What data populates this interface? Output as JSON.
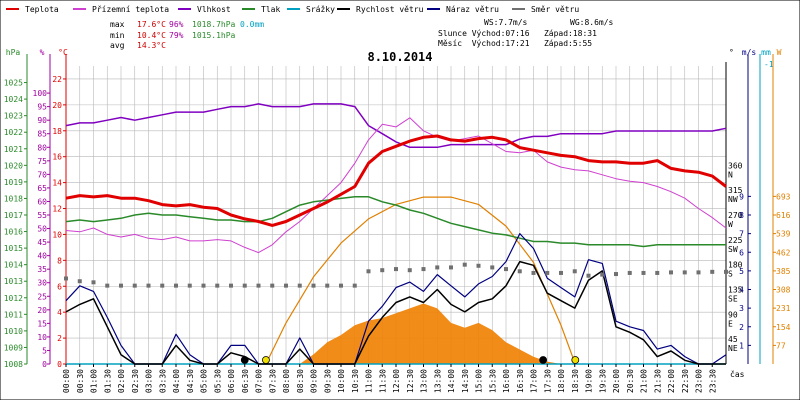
{
  "colors": {
    "teplota": "#e00000",
    "prizemni": "#d040d0",
    "vlhkost": "#8000c0",
    "tlak": "#2a8a2a",
    "srazky": "#00a0c0",
    "rychlost": "#000000",
    "naraz": "#000080",
    "smer": "#707070",
    "sun_curve": "#e08000",
    "solar_fill": "#f08000",
    "grid": "#b8b8b8",
    "axis_hpa": "#2a8a2a",
    "axis_pct": "#a000a0",
    "axis_c": "#e00000",
    "axis_ms": "#000080",
    "axis_mm": "#00a0c0",
    "axis_w": "#e08000",
    "moon_dot": "#000000",
    "sun_dot": "#f0e000"
  },
  "legend": [
    {
      "key": "teplota",
      "label": "Teplota"
    },
    {
      "key": "prizemni",
      "label": "Přízemní teplota"
    },
    {
      "key": "vlhkost",
      "label": "Vlhkost"
    },
    {
      "key": "tlak",
      "label": "Tlak"
    },
    {
      "key": "srazky",
      "label": "Srážky"
    },
    {
      "key": "rychlost",
      "label": "Rychlost větru"
    },
    {
      "key": "naraz",
      "label": "Náraz větru"
    },
    {
      "key": "smer",
      "label": "Směr větru"
    }
  ],
  "stats": {
    "max_label": "max",
    "max_temp": "17.6°C",
    "max_hum": "96%",
    "max_press": "1018.7hPa",
    "max_rain": "0.0mm",
    "min_label": "min",
    "min_temp": "10.4°C",
    "min_hum": "79%",
    "min_press": "1015.1hPa",
    "avg_label": "avg",
    "avg_temp": "14.3°C",
    "ws": "WS:7.7m/s",
    "wg": "WG:8.6m/s",
    "sun": "Slunce Východ:07:16   Západ:18:31",
    "moon": "Měsíc  Východ:17:21   Západ:5:55"
  },
  "chart_data": {
    "type": "line",
    "title": "8.10.2014",
    "xlabel": "čas",
    "x_ticks": [
      "00:00",
      "00:30",
      "01:00",
      "01:30",
      "02:00",
      "02:30",
      "03:00",
      "03:30",
      "04:00",
      "04:30",
      "05:00",
      "05:30",
      "06:00",
      "06:30",
      "07:00",
      "07:30",
      "08:00",
      "08:30",
      "09:00",
      "09:30",
      "10:00",
      "10:30",
      "11:00",
      "11:30",
      "12:00",
      "12:30",
      "13:00",
      "13:30",
      "14:00",
      "14:30",
      "15:00",
      "15:30",
      "16:00",
      "16:30",
      "17:00",
      "17:30",
      "18:00",
      "18:30",
      "19:00",
      "19:30",
      "20:00",
      "20:30",
      "21:00",
      "21:30",
      "22:00",
      "22:30",
      "23:00",
      "23:30"
    ],
    "axes": {
      "hpa": {
        "unit": "hPa",
        "range": [
          1008,
          1026
        ],
        "ticks": [
          1008,
          1009,
          1010,
          1011,
          1012,
          1013,
          1014,
          1015,
          1016,
          1017,
          1018,
          1019,
          1020,
          1021,
          1022,
          1023,
          1024,
          1025
        ]
      },
      "pct": {
        "unit": "%",
        "range": [
          0,
          110
        ],
        "ticks": [
          0,
          5,
          10,
          15,
          20,
          25,
          30,
          35,
          40,
          45,
          50,
          55,
          60,
          65,
          70,
          75,
          80,
          85,
          90,
          95,
          100
        ]
      },
      "degc": {
        "unit": "°C",
        "range": [
          0,
          23
        ],
        "ticks": [
          0,
          2,
          4,
          6,
          8,
          10,
          12,
          14,
          16,
          18,
          20,
          22
        ]
      },
      "dir": {
        "unit": "°",
        "ticks": [
          {
            "v": 45,
            "l": "NE"
          },
          {
            "v": 90,
            "l": "E"
          },
          {
            "v": 135,
            "l": "SE"
          },
          {
            "v": 180,
            "l": "S"
          },
          {
            "v": 225,
            "l": "SW"
          },
          {
            "v": 270,
            "l": "W"
          },
          {
            "v": 315,
            "l": "NW"
          },
          {
            "v": 360,
            "l": "N"
          }
        ]
      },
      "ms": {
        "unit": "m/s",
        "ticks": [
          1,
          2,
          3,
          4,
          5,
          6,
          7,
          8,
          9
        ]
      },
      "mm": {
        "unit": "mm",
        "ticks": [
          -1
        ]
      },
      "w": {
        "unit": "W",
        "ticks": [
          77,
          154,
          231,
          308,
          385,
          462,
          539,
          616,
          693
        ]
      }
    },
    "series": [
      {
        "name": "Teplota",
        "axis": "degc",
        "x": [
          0,
          0.5,
          1,
          1.5,
          2,
          2.5,
          3,
          3.5,
          4,
          4.5,
          5,
          5.5,
          6,
          6.5,
          7,
          7.5,
          8,
          8.5,
          9,
          9.5,
          10,
          10.5,
          11,
          11.5,
          12,
          12.5,
          13,
          13.5,
          14,
          14.5,
          15,
          15.5,
          16,
          16.5,
          17,
          17.5,
          18,
          18.5,
          19,
          19.5,
          20,
          20.5,
          21,
          21.5,
          22,
          22.5,
          23,
          23.5,
          24
        ],
        "y": [
          12.8,
          13,
          12.9,
          13,
          12.8,
          12.8,
          12.6,
          12.3,
          12.2,
          12.3,
          12.1,
          12,
          11.5,
          11.2,
          11,
          10.7,
          11,
          11.5,
          12,
          12.5,
          13.1,
          13.7,
          15.5,
          16.4,
          16.8,
          17.2,
          17.5,
          17.6,
          17.3,
          17.2,
          17.4,
          17.5,
          17.3,
          16.7,
          16.5,
          16.3,
          16.1,
          16,
          15.7,
          15.6,
          15.6,
          15.5,
          15.5,
          15.7,
          15.1,
          14.9,
          14.8,
          14.5,
          13.7
        ]
      },
      {
        "name": "Přízemní teplota",
        "axis": "degc",
        "x": [
          0,
          0.5,
          1,
          1.5,
          2,
          2.5,
          3,
          3.5,
          4,
          4.5,
          5,
          5.5,
          6,
          6.5,
          7,
          7.5,
          8,
          8.5,
          9,
          9.5,
          10,
          10.5,
          11,
          11.5,
          12,
          12.5,
          13,
          13.5,
          14,
          14.5,
          15,
          15.5,
          16,
          16.5,
          17,
          17.5,
          18,
          18.5,
          19,
          19.5,
          20,
          20.5,
          21,
          21.5,
          22,
          22.5,
          23,
          23.5,
          24
        ],
        "y": [
          10.3,
          10.2,
          10.5,
          10,
          9.8,
          10,
          9.7,
          9.6,
          9.8,
          9.5,
          9.5,
          9.6,
          9.5,
          9,
          8.6,
          9.2,
          10.2,
          11,
          12,
          13,
          14,
          15.5,
          17.3,
          18.5,
          18.3,
          19,
          18,
          17.5,
          17.2,
          17.4,
          17.6,
          17,
          16.4,
          16.3,
          16.5,
          15.6,
          15.2,
          15,
          14.9,
          14.6,
          14.3,
          14.1,
          14,
          13.7,
          13.3,
          12.8,
          12,
          11.3,
          10.5
        ]
      },
      {
        "name": "Vlhkost",
        "axis": "pct",
        "x": [
          0,
          0.5,
          1,
          1.5,
          2,
          2.5,
          3,
          3.5,
          4,
          4.5,
          5,
          5.5,
          6,
          6.5,
          7,
          7.5,
          8,
          8.5,
          9,
          9.5,
          10,
          10.5,
          11,
          11.5,
          12,
          12.5,
          13,
          13.5,
          14,
          14.5,
          15,
          15.5,
          16,
          16.5,
          17,
          17.5,
          18,
          18.5,
          19,
          19.5,
          20,
          20.5,
          21,
          21.5,
          22,
          22.5,
          23,
          23.5,
          24
        ],
        "y": [
          88,
          89,
          89,
          90,
          91,
          90,
          91,
          92,
          93,
          93,
          93,
          94,
          95,
          95,
          96,
          95,
          95,
          95,
          96,
          96,
          96,
          95,
          88,
          85,
          82,
          80,
          80,
          80,
          81,
          81,
          81,
          81,
          81,
          83,
          84,
          84,
          85,
          85,
          85,
          85,
          86,
          86,
          86,
          86,
          86,
          86,
          86,
          86,
          87
        ]
      },
      {
        "name": "Tlak",
        "axis": "hpa",
        "x": [
          0,
          0.5,
          1,
          1.5,
          2,
          2.5,
          3,
          3.5,
          4,
          4.5,
          5,
          5.5,
          6,
          6.5,
          7,
          7.5,
          8,
          8.5,
          9,
          9.5,
          10,
          10.5,
          11,
          11.5,
          12,
          12.5,
          13,
          13.5,
          14,
          14.5,
          15,
          15.5,
          16,
          16.5,
          17,
          17.5,
          18,
          18.5,
          19,
          19.5,
          20,
          20.5,
          21,
          21.5,
          22,
          22.5,
          23,
          23.5,
          24
        ],
        "y": [
          1016.6,
          1016.7,
          1016.6,
          1016.7,
          1016.8,
          1017,
          1017.1,
          1017,
          1017,
          1016.9,
          1016.8,
          1016.7,
          1016.7,
          1016.6,
          1016.6,
          1016.8,
          1017.2,
          1017.6,
          1017.8,
          1017.9,
          1018,
          1018.1,
          1018.1,
          1017.8,
          1017.6,
          1017.3,
          1017.1,
          1016.8,
          1016.5,
          1016.3,
          1016.1,
          1015.9,
          1015.8,
          1015.6,
          1015.4,
          1015.4,
          1015.3,
          1015.3,
          1015.2,
          1015.2,
          1015.2,
          1015.2,
          1015.1,
          1015.2,
          1015.2,
          1015.2,
          1015.2,
          1015.2,
          1015.2
        ]
      },
      {
        "name": "Srážky",
        "axis": "degc",
        "x": [
          0,
          24
        ],
        "y": [
          0,
          0
        ]
      },
      {
        "name": "Rychlost větru",
        "axis": "ms",
        "x": [
          0,
          0.5,
          1,
          1.5,
          2,
          2.5,
          3,
          3.5,
          4,
          4.5,
          5,
          5.5,
          6,
          6.5,
          7,
          7.5,
          8,
          8.5,
          9,
          9.5,
          10,
          10.5,
          11,
          11.5,
          12,
          12.5,
          13,
          13.5,
          14,
          14.5,
          15,
          15.5,
          16,
          16.5,
          17,
          17.5,
          18,
          18.5,
          19,
          19.5,
          20,
          20.5,
          21,
          21.5,
          22,
          22.5,
          23,
          23.5,
          24
        ],
        "y": [
          2.8,
          3.2,
          3.5,
          2,
          0.5,
          0,
          0,
          0,
          1,
          0.2,
          0,
          0,
          0.6,
          0.4,
          0,
          0,
          0,
          0.8,
          0,
          0,
          0,
          0,
          1.5,
          2.5,
          3.3,
          3.6,
          3.3,
          4,
          3.2,
          2.8,
          3.3,
          3.5,
          4.2,
          5.5,
          5.3,
          3.8,
          3.4,
          3,
          4.5,
          5,
          2,
          1.7,
          1.3,
          0.4,
          0.7,
          0.2,
          0,
          0,
          0
        ]
      },
      {
        "name": "Náraz větru",
        "axis": "ms",
        "x": [
          0,
          0.5,
          1,
          1.5,
          2,
          2.5,
          3,
          3.5,
          4,
          4.5,
          5,
          5.5,
          6,
          6.5,
          7,
          7.5,
          8,
          8.5,
          9,
          9.5,
          10,
          10.5,
          11,
          11.5,
          12,
          12.5,
          13,
          13.5,
          14,
          14.5,
          15,
          15.5,
          16,
          16.5,
          17,
          17.5,
          18,
          18.5,
          19,
          19.5,
          20,
          20.5,
          21,
          21.5,
          22,
          22.5,
          23,
          23.5,
          24
        ],
        "y": [
          3.4,
          4.2,
          3.9,
          2.5,
          1,
          0,
          0,
          0,
          1.6,
          0.5,
          0,
          0,
          1,
          1,
          0,
          0,
          0,
          1.4,
          0,
          0,
          0,
          0,
          2.3,
          3.1,
          4.1,
          4.4,
          3.9,
          4.8,
          4.2,
          3.6,
          4.3,
          4.7,
          5.5,
          7,
          6.2,
          4.6,
          4.1,
          3.6,
          5.6,
          5.4,
          2.3,
          2,
          1.8,
          0.8,
          1,
          0.4,
          0,
          0,
          0.5
        ]
      },
      {
        "name": "Směr větru",
        "axis": "dir",
        "x": [
          0,
          0.5,
          1,
          1.5,
          2,
          2.5,
          3,
          3.5,
          4,
          4.5,
          5,
          5.5,
          6,
          6.5,
          7,
          7.5,
          8,
          8.5,
          9,
          9.5,
          10,
          10.5,
          11,
          11.5,
          12,
          12.5,
          13,
          13.5,
          14,
          14.5,
          15,
          15.5,
          16,
          16.5,
          17,
          17.5,
          18,
          18.5,
          19,
          19.5,
          20,
          20.5,
          21,
          21.5,
          22,
          22.5,
          23,
          23.5,
          24
        ],
        "y": [
          155,
          150,
          148,
          142,
          142,
          142,
          142,
          142,
          142,
          142,
          142,
          142,
          142,
          142,
          142,
          142,
          142,
          142,
          142,
          142,
          142,
          142,
          168,
          170,
          172,
          170,
          172,
          175,
          175,
          180,
          178,
          175,
          172,
          168,
          165,
          165,
          165,
          168,
          160,
          162,
          163,
          165,
          165,
          165,
          166,
          166,
          166,
          167,
          167
        ]
      },
      {
        "name": "Slunce",
        "axis": "w",
        "x": [
          7.27,
          8,
          9,
          10,
          11,
          12,
          13,
          14,
          15,
          16,
          17,
          18,
          18.52
        ],
        "y": [
          0,
          170,
          360,
          500,
          600,
          660,
          690,
          690,
          660,
          570,
          420,
          160,
          0
        ]
      },
      {
        "name": "Radiace",
        "axis": "w",
        "x": [
          8.5,
          9,
          9.5,
          10,
          10.5,
          11,
          11.5,
          12,
          12.5,
          13,
          13.5,
          14,
          14.5,
          15,
          15.5,
          16,
          16.5,
          17,
          17.5,
          18
        ],
        "y": [
          0,
          40,
          90,
          120,
          160,
          180,
          190,
          210,
          230,
          250,
          230,
          170,
          150,
          170,
          140,
          90,
          60,
          30,
          10,
          0
        ]
      }
    ]
  }
}
